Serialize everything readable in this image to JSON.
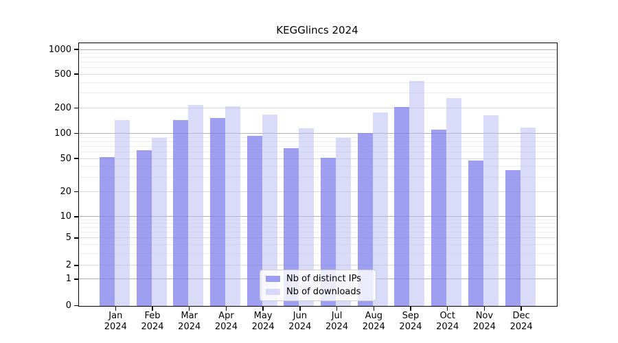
{
  "title": "KEGGlincs 2024",
  "colors": {
    "distinct_ips": "#9f9fef",
    "distinct_ips_rgba": "rgba(122,122,235,0.72)",
    "downloads": "#dadaf5",
    "downloads_rgba": "rgba(185,185,243,0.52)",
    "grid_decade": "#b0b0b0",
    "grid_mid": "#d9d9d9",
    "grid_minor": "#ededed",
    "axis": "#000000"
  },
  "axes": {
    "y_tick_labels": [
      "0",
      "1",
      "2",
      "5",
      "10",
      "20",
      "50",
      "100",
      "200",
      "500",
      "1000"
    ],
    "x_tick_labels": [
      {
        "line1": "Jan",
        "line2": "2024"
      },
      {
        "line1": "Feb",
        "line2": "2024"
      },
      {
        "line1": "Mar",
        "line2": "2024"
      },
      {
        "line1": "Apr",
        "line2": "2024"
      },
      {
        "line1": "May",
        "line2": "2024"
      },
      {
        "line1": "Jun",
        "line2": "2024"
      },
      {
        "line1": "Jul",
        "line2": "2024"
      },
      {
        "line1": "Aug",
        "line2": "2024"
      },
      {
        "line1": "Sep",
        "line2": "2024"
      },
      {
        "line1": "Oct",
        "line2": "2024"
      },
      {
        "line1": "Nov",
        "line2": "2024"
      },
      {
        "line1": "Dec",
        "line2": "2024"
      }
    ]
  },
  "chart_data": {
    "type": "bar",
    "title": "KEGGlincs 2024",
    "categories": [
      "Jan 2024",
      "Feb 2024",
      "Mar 2024",
      "Apr 2024",
      "May 2024",
      "Jun 2024",
      "Jul 2024",
      "Aug 2024",
      "Sep 2024",
      "Oct 2024",
      "Nov 2024",
      "Dec 2024"
    ],
    "series": [
      {
        "name": "Nb of distinct IPs",
        "values": [
          53,
          64,
          146,
          153,
          95,
          67,
          52,
          102,
          208,
          113,
          48,
          37
        ]
      },
      {
        "name": "Nb of downloads",
        "values": [
          145,
          89,
          220,
          211,
          170,
          117,
          90,
          178,
          420,
          265,
          167,
          119
        ]
      }
    ],
    "yscale": "symlog",
    "yticks": [
      0,
      1,
      2,
      5,
      10,
      20,
      50,
      100,
      200,
      500,
      1000
    ],
    "ylim": [
      0,
      1200
    ],
    "xlabel": "",
    "ylabel": "",
    "grid": true,
    "legend_position": "lower center"
  }
}
